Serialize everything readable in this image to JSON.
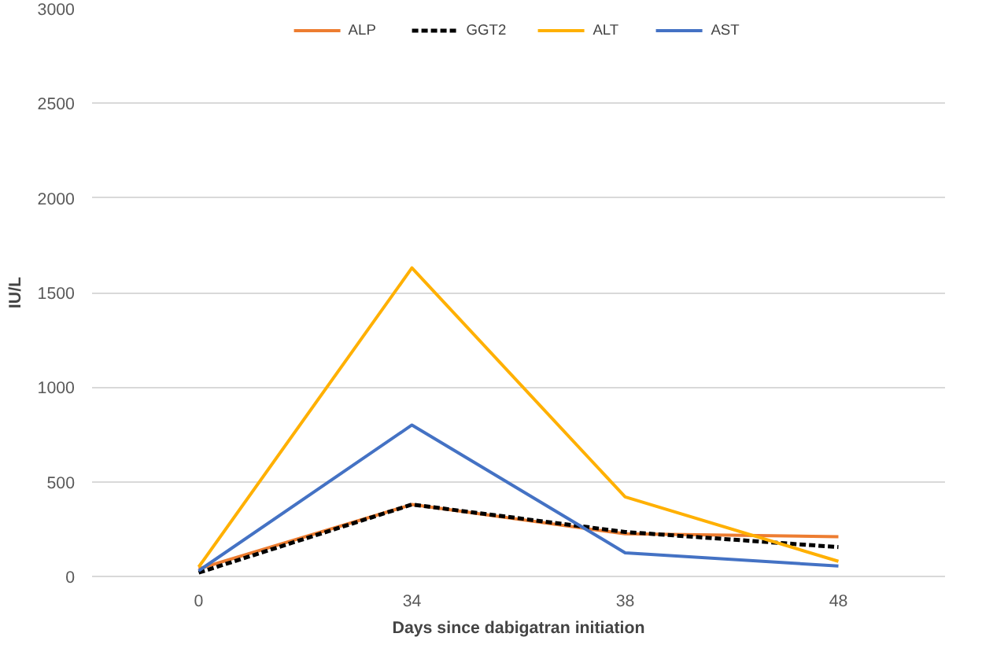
{
  "chart_data": {
    "type": "line",
    "xlabel": "Days since dabigatran initiation",
    "ylabel": "IU/L",
    "categories": [
      "0",
      "34",
      "38",
      "48"
    ],
    "series": [
      {
        "name": "ALP",
        "color": "#ed7d31",
        "values": [
          40,
          380,
          225,
          210
        ]
      },
      {
        "name": "GGT2",
        "color": "#000000",
        "line_style": "dashed",
        "values": [
          20,
          380,
          235,
          155
        ]
      },
      {
        "name": "ALT",
        "color": "#ffb000",
        "values": [
          50,
          1630,
          420,
          80
        ]
      },
      {
        "name": "AST",
        "color": "#4472c4",
        "values": [
          30,
          800,
          125,
          55
        ]
      }
    ],
    "ylim": [
      0,
      3000
    ],
    "yticks": [
      0,
      500,
      1000,
      1500,
      2000,
      2500,
      3000
    ],
    "grid": "y",
    "legend": "top",
    "line_style": "solid"
  }
}
